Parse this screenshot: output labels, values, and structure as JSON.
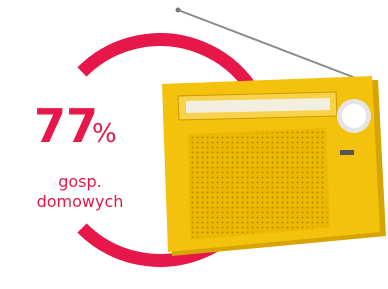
{
  "stat": {
    "value": "77",
    "unit": "%",
    "label_lines": [
      "gosp.",
      "domowych"
    ]
  }
}
